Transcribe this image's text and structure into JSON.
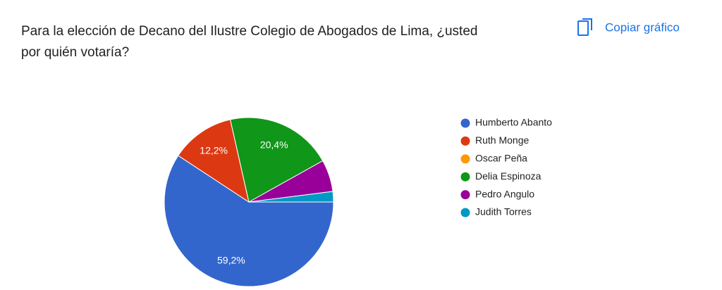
{
  "toolbar": {
    "copy_button": "Copiar gráfico"
  },
  "chart_data": {
    "type": "pie",
    "title": "Para la elección de Decano del Ilustre Colegio de Abogados de Lima, ¿usted por quién votaría?",
    "categories": [
      "Humberto Abanto",
      "Ruth Monge",
      "Oscar Peña",
      "Delia Espinoza",
      "Pedro Angulo",
      "Judith Torres"
    ],
    "values": [
      59.2,
      12.2,
      0,
      20.4,
      6.1,
      2
    ],
    "value_labels": [
      "59,2%",
      "12,2%",
      null,
      "20,4%",
      null,
      null
    ],
    "colors": [
      "#3366cc",
      "#dc3912",
      "#ff9900",
      "#109618",
      "#990099",
      "#0099c6"
    ],
    "legend": "right"
  }
}
